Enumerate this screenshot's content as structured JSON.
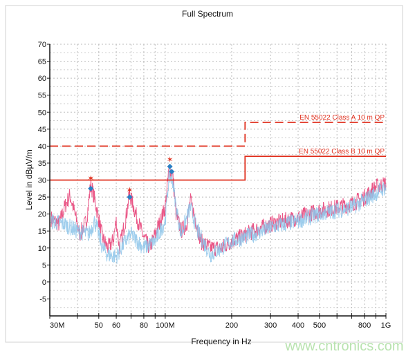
{
  "chart_data": {
    "type": "line",
    "title": "Full Spectrum",
    "xlabel": "Frequency in Hz",
    "ylabel": "Level in dBµV/m",
    "x_scale": "log",
    "xlim_mhz": [
      30,
      1000
    ],
    "ylim": [
      -10,
      70
    ],
    "grid": true,
    "x_ticks": [
      {
        "value": 30,
        "label": "30M"
      },
      {
        "value": 40,
        "label": ""
      },
      {
        "value": 50,
        "label": "50"
      },
      {
        "value": 60,
        "label": "60"
      },
      {
        "value": 70,
        "label": ""
      },
      {
        "value": 80,
        "label": "80"
      },
      {
        "value": 90,
        "label": ""
      },
      {
        "value": 100,
        "label": "100M"
      },
      {
        "value": 200,
        "label": "200"
      },
      {
        "value": 300,
        "label": "300"
      },
      {
        "value": 400,
        "label": "400"
      },
      {
        "value": 500,
        "label": "500"
      },
      {
        "value": 600,
        "label": ""
      },
      {
        "value": 700,
        "label": ""
      },
      {
        "value": 800,
        "label": "800"
      },
      {
        "value": 900,
        "label": ""
      },
      {
        "value": 1000,
        "label": "1G"
      }
    ],
    "y_ticks": [
      70,
      65,
      60,
      55,
      50,
      45,
      40,
      35,
      30,
      25,
      20,
      15,
      10,
      5,
      0,
      -5
    ],
    "limits": [
      {
        "name": "EN 55022 Class A 10 m QP",
        "style": "dashed",
        "color": "#e0301e",
        "points": [
          [
            30,
            40
          ],
          [
            230,
            40
          ],
          [
            230,
            47
          ],
          [
            1000,
            47
          ]
        ]
      },
      {
        "name": "EN 55022 Class B 10 m QP",
        "style": "solid",
        "color": "#e0301e",
        "points": [
          [
            30,
            30
          ],
          [
            230,
            30
          ],
          [
            230,
            37
          ],
          [
            1000,
            37
          ]
        ]
      }
    ],
    "series": [
      {
        "color": "#e8457a",
        "points": [
          [
            30,
            19
          ],
          [
            33,
            17
          ],
          [
            35,
            22
          ],
          [
            37,
            25.5
          ],
          [
            39,
            20
          ],
          [
            41,
            14
          ],
          [
            44,
            18
          ],
          [
            46,
            29
          ],
          [
            48,
            24
          ],
          [
            52,
            13
          ],
          [
            55,
            10
          ],
          [
            58,
            12
          ],
          [
            60,
            18
          ],
          [
            62,
            10
          ],
          [
            66,
            18
          ],
          [
            69,
            26
          ],
          [
            72,
            22
          ],
          [
            76,
            17
          ],
          [
            80,
            13
          ],
          [
            85,
            10
          ],
          [
            90,
            14
          ],
          [
            95,
            18
          ],
          [
            100,
            22
          ],
          [
            104,
            33
          ],
          [
            108,
            32
          ],
          [
            112,
            20
          ],
          [
            118,
            15
          ],
          [
            125,
            17
          ],
          [
            130,
            24
          ],
          [
            135,
            20
          ],
          [
            145,
            12
          ],
          [
            160,
            10
          ],
          [
            180,
            10
          ],
          [
            200,
            12
          ],
          [
            250,
            15
          ],
          [
            300,
            17
          ],
          [
            400,
            19
          ],
          [
            500,
            21
          ],
          [
            600,
            22
          ],
          [
            700,
            23
          ],
          [
            800,
            25
          ],
          [
            900,
            28
          ],
          [
            1000,
            29
          ]
        ]
      },
      {
        "color": "#8ec6ea",
        "points": [
          [
            30,
            18
          ],
          [
            35,
            17
          ],
          [
            40,
            15
          ],
          [
            45,
            14
          ],
          [
            48,
            18
          ],
          [
            52,
            10
          ],
          [
            55,
            8
          ],
          [
            60,
            7.5
          ],
          [
            66,
            12
          ],
          [
            70,
            14
          ],
          [
            80,
            10
          ],
          [
            90,
            12
          ],
          [
            100,
            18
          ],
          [
            104,
            31
          ],
          [
            108,
            30
          ],
          [
            112,
            22
          ],
          [
            118,
            14
          ],
          [
            130,
            22
          ],
          [
            140,
            15
          ],
          [
            160,
            8
          ],
          [
            180,
            10
          ],
          [
            200,
            12
          ],
          [
            250,
            14
          ],
          [
            300,
            16
          ],
          [
            400,
            18
          ],
          [
            500,
            20
          ],
          [
            700,
            22
          ],
          [
            800,
            24
          ],
          [
            1000,
            28
          ]
        ]
      }
    ],
    "markers": [
      {
        "type": "star",
        "color": "#e0301e",
        "x": 46,
        "y": 30.5
      },
      {
        "type": "diamond",
        "color": "#2a7fc4",
        "x": 46,
        "y": 27.5
      },
      {
        "type": "star",
        "color": "#e0301e",
        "x": 69,
        "y": 27
      },
      {
        "type": "diamond",
        "color": "#2a7fc4",
        "x": 69,
        "y": 25
      },
      {
        "type": "star",
        "color": "#e0301e",
        "x": 105,
        "y": 36
      },
      {
        "type": "diamond",
        "color": "#2a7fc4",
        "x": 105,
        "y": 34
      },
      {
        "type": "diamond",
        "color": "#2a7fc4",
        "x": 107,
        "y": 32.5
      }
    ]
  },
  "watermark": "www.cntronics.com"
}
